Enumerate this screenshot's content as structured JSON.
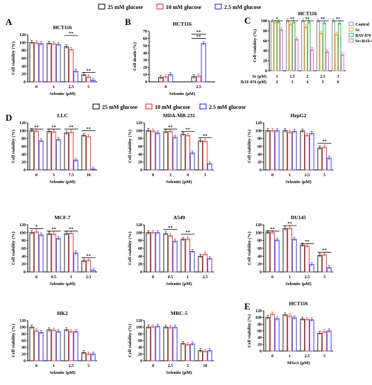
{
  "legend_top": [
    "25 mM glucose",
    "10 mM glucose",
    "2.5 mM glucose"
  ],
  "legend_mid": [
    "25 mM glucose",
    "10 mM glucose",
    "2.5 mM glucose"
  ],
  "colors": {
    "g25": "#222222",
    "g10": "#e8403a",
    "g2_5": "#3a3ae0",
    "ctrl": "#888888",
    "se": "#f0a030",
    "bay": "#2ab84a",
    "sebay": "#e060d0"
  },
  "chart_data": [
    {
      "id": "A",
      "letter": "A",
      "type": "bar",
      "title": "HCT116",
      "xlabel": "Selenite (μM)",
      "ylabel": "Cell viability (%)",
      "ylim": [
        0,
        120
      ],
      "yticks": [
        0,
        20,
        40,
        60,
        80,
        100,
        120
      ],
      "categories": [
        "0",
        "1",
        "2.5",
        "5"
      ],
      "series": [
        {
          "name": "25 mM glucose",
          "values": [
            100,
            98,
            89,
            18
          ]
        },
        {
          "name": "10 mM glucose",
          "values": [
            99,
            97,
            82,
            12
          ]
        },
        {
          "name": "2.5 mM glucose",
          "values": [
            97,
            95,
            27,
            4
          ]
        }
      ],
      "sig": [
        {
          "cat": 2,
          "text": "**",
          "level": 118
        },
        {
          "cat": 3,
          "text": "**",
          "level": 24
        }
      ]
    },
    {
      "id": "B",
      "letter": "B",
      "type": "bar",
      "title": "HCT116",
      "xlabel": "Selenite (μM)",
      "ylabel": "Cell death (%)",
      "ylim": [
        0,
        70
      ],
      "yticks": [
        0,
        10,
        20,
        30,
        40,
        50,
        60,
        70
      ],
      "categories": [
        "0",
        "2.5"
      ],
      "series": [
        {
          "name": "25 mM glucose",
          "values": [
            6,
            7
          ]
        },
        {
          "name": "10 mM glucose",
          "values": [
            7,
            8
          ]
        },
        {
          "name": "2.5 mM glucose",
          "values": [
            10,
            53
          ]
        }
      ],
      "sig": [
        {
          "cat": 1,
          "text": "**",
          "level": 66
        },
        {
          "cat": 1,
          "text": "**",
          "level": 60
        }
      ]
    },
    {
      "id": "C",
      "letter": "C",
      "type": "bar",
      "title": "HCT116",
      "xlabel": "",
      "ylabel": "Cell viability (%)",
      "ylim": [
        0,
        100
      ],
      "yticks": [
        0,
        20,
        40,
        60,
        80,
        100
      ],
      "categories": [
        "1|2",
        "1.5|3",
        "2|4",
        "2.5|5",
        "3|6"
      ],
      "row_labels": [
        "Se (μM)",
        "BAY-876 (μM)"
      ],
      "series": [
        {
          "name": "Control",
          "values": [
            100,
            100,
            100,
            100,
            100
          ]
        },
        {
          "name": "Se",
          "values": [
            97,
            93,
            88,
            75,
            73
          ]
        },
        {
          "name": "BAY-876",
          "values": [
            98,
            97,
            97,
            96,
            95
          ]
        },
        {
          "name": "Se+BAY-876",
          "values": [
            82,
            63,
            42,
            38,
            32
          ]
        }
      ],
      "sig": [
        {
          "cat": 0,
          "text": "*",
          "level": 104
        },
        {
          "cat": 1,
          "text": "**",
          "level": 104
        },
        {
          "cat": 2,
          "text": "**",
          "level": 104
        },
        {
          "cat": 3,
          "text": "**",
          "level": 104
        },
        {
          "cat": 4,
          "text": "**",
          "level": 104
        }
      ]
    },
    {
      "id": "D1",
      "letter": "D",
      "type": "bar",
      "title": "LLC",
      "xlabel": "Selenite (μM)",
      "ylabel": "Cell viability (%)",
      "ylim": [
        0,
        120
      ],
      "yticks": [
        0,
        20,
        40,
        60,
        80,
        100,
        120
      ],
      "categories": [
        "0",
        "5",
        "7.5",
        "10"
      ],
      "series": [
        {
          "name": "25 mM glucose",
          "values": [
            100,
            98,
            94,
            88
          ]
        },
        {
          "name": "10 mM glucose",
          "values": [
            99,
            97,
            96,
            85
          ]
        },
        {
          "name": "2.5 mM glucose",
          "values": [
            74,
            77,
            25,
            2
          ]
        }
      ],
      "sig": [
        {
          "cat": 0,
          "text": "**",
          "level": 104
        },
        {
          "cat": 1,
          "text": "**",
          "level": 104
        },
        {
          "cat": 2,
          "text": "**",
          "level": 104
        },
        {
          "cat": 3,
          "text": "**",
          "level": 100
        }
      ]
    },
    {
      "id": "D2",
      "letter": "",
      "type": "bar",
      "title": "MDA-MB-231",
      "xlabel": "Selenite (μM)",
      "ylabel": "Cell viability (%)",
      "ylim": [
        0,
        120
      ],
      "yticks": [
        0,
        20,
        40,
        60,
        80,
        100,
        120
      ],
      "categories": [
        "0",
        "3",
        "4",
        "5"
      ],
      "series": [
        {
          "name": "25 mM glucose",
          "values": [
            100,
            97,
            91,
            74
          ]
        },
        {
          "name": "10 mM glucose",
          "values": [
            99,
            98,
            88,
            73
          ]
        },
        {
          "name": "2.5 mM glucose",
          "values": [
            94,
            83,
            43,
            16
          ]
        }
      ],
      "sig": [
        {
          "cat": 1,
          "text": "**",
          "level": 104
        },
        {
          "cat": 2,
          "text": "**",
          "level": 98
        },
        {
          "cat": 3,
          "text": "**",
          "level": 82
        }
      ]
    },
    {
      "id": "D3",
      "letter": "",
      "type": "bar",
      "title": "HepG2",
      "xlabel": "Selenite (μM)",
      "ylabel": "Cell viability (%)",
      "ylim": [
        0,
        120
      ],
      "yticks": [
        0,
        20,
        40,
        60,
        80,
        100,
        120
      ],
      "categories": [
        "0",
        "1",
        "2.5",
        "5"
      ],
      "series": [
        {
          "name": "25 mM glucose",
          "values": [
            100,
            100,
            99,
            56
          ]
        },
        {
          "name": "10 mM glucose",
          "values": [
            100,
            96,
            88,
            58
          ]
        },
        {
          "name": "2.5 mM glucose",
          "values": [
            100,
            98,
            93,
            30
          ]
        }
      ],
      "sig": [
        {
          "cat": 3,
          "text": "**",
          "level": 68
        }
      ]
    },
    {
      "id": "D4",
      "letter": "",
      "type": "bar",
      "title": "MCF-7",
      "xlabel": "Selenite (μM)",
      "ylabel": "Cell viability (%)",
      "ylim": [
        0,
        120
      ],
      "yticks": [
        0,
        20,
        40,
        60,
        80,
        100,
        120
      ],
      "categories": [
        "0",
        "0.5",
        "1",
        "2.5"
      ],
      "series": [
        {
          "name": "25 mM glucose",
          "values": [
            100,
            97,
            97,
            28
          ]
        },
        {
          "name": "10 mM glucose",
          "values": [
            102,
            96,
            98,
            30
          ]
        },
        {
          "name": "2.5 mM glucose",
          "values": [
            94,
            85,
            48,
            4
          ]
        }
      ],
      "sig": [
        {
          "cat": 0,
          "text": "*",
          "level": 110
        },
        {
          "cat": 1,
          "text": "**",
          "level": 104
        },
        {
          "cat": 2,
          "text": "**",
          "level": 104
        },
        {
          "cat": 3,
          "text": "**",
          "level": 36
        }
      ]
    },
    {
      "id": "D5",
      "letter": "",
      "type": "bar",
      "title": "A549",
      "xlabel": "Selenite (μM)",
      "ylabel": "Cell viability (%)",
      "ylim": [
        0,
        120
      ],
      "yticks": [
        0,
        20,
        40,
        60,
        80,
        100,
        120
      ],
      "categories": [
        "0",
        "0.5",
        "1",
        "2.5"
      ],
      "series": [
        {
          "name": "25 mM glucose",
          "values": [
            100,
            97,
            83,
            40
          ]
        },
        {
          "name": "10 mM glucose",
          "values": [
            100,
            92,
            84,
            45
          ]
        },
        {
          "name": "2.5 mM glucose",
          "values": [
            100,
            78,
            52,
            34
          ]
        }
      ],
      "sig": [
        {
          "cat": 1,
          "text": "**",
          "level": 108
        },
        {
          "cat": 2,
          "text": "**",
          "level": 96
        }
      ]
    },
    {
      "id": "D6",
      "letter": "",
      "type": "bar",
      "title": "DU145",
      "xlabel": "Selenite (μM)",
      "ylabel": "Cell viability (%)",
      "ylim": [
        0,
        120
      ],
      "yticks": [
        0,
        20,
        40,
        60,
        80,
        100,
        120
      ],
      "categories": [
        "0",
        "1",
        "2.5",
        "5"
      ],
      "series": [
        {
          "name": "25 mM glucose",
          "values": [
            100,
            110,
            68,
            42
          ]
        },
        {
          "name": "10 mM glucose",
          "values": [
            100,
            111,
            66,
            44
          ]
        },
        {
          "name": "2.5 mM glucose",
          "values": [
            81,
            83,
            19,
            11
          ]
        }
      ],
      "sig": [
        {
          "cat": 0,
          "text": "**",
          "level": 104
        },
        {
          "cat": 1,
          "text": "**",
          "level": 118
        },
        {
          "cat": 2,
          "text": "**",
          "level": 72
        },
        {
          "cat": 3,
          "text": "**",
          "level": 50
        }
      ]
    },
    {
      "id": "D7",
      "letter": "",
      "type": "bar",
      "title": "HK2",
      "xlabel": "Selenite (μM)",
      "ylabel": "Cell viability (%)",
      "ylim": [
        0,
        120
      ],
      "yticks": [
        0,
        20,
        40,
        60,
        80,
        100,
        120
      ],
      "categories": [
        "0",
        "1",
        "2.5",
        "5"
      ],
      "series": [
        {
          "name": "25 mM glucose",
          "values": [
            100,
            92,
            92,
            24
          ]
        },
        {
          "name": "10 mM glucose",
          "values": [
            89,
            91,
            87,
            20
          ]
        },
        {
          "name": "2.5 mM glucose",
          "values": [
            84,
            87,
            87,
            20
          ]
        }
      ],
      "sig": []
    },
    {
      "id": "D8",
      "letter": "",
      "type": "bar",
      "title": "MRC-5",
      "xlabel": "Selenite (μM)",
      "ylabel": "Cell viability (%)",
      "ylim": [
        0,
        120
      ],
      "yticks": [
        0,
        20,
        40,
        60,
        80,
        100,
        120
      ],
      "categories": [
        "0",
        "2.5",
        "5",
        "10"
      ],
      "series": [
        {
          "name": "25 mM glucose",
          "values": [
            100,
            100,
            51,
            30
          ]
        },
        {
          "name": "10 mM glucose",
          "values": [
            101,
            99,
            48,
            28
          ]
        },
        {
          "name": "2.5 mM glucose",
          "values": [
            103,
            100,
            50,
            30
          ]
        }
      ],
      "sig": []
    },
    {
      "id": "E",
      "letter": "E",
      "type": "bar",
      "title": "HCT116",
      "xlabel": "MSeA (μM)",
      "ylabel": "Cell viability (%)",
      "ylim": [
        0,
        120
      ],
      "yticks": [
        0,
        20,
        40,
        60,
        80,
        100,
        120
      ],
      "categories": [
        "0",
        "1",
        "2.5",
        "5"
      ],
      "series": [
        {
          "name": "25 mM glucose",
          "values": [
            100,
            108,
            95,
            53
          ]
        },
        {
          "name": "10 mM glucose",
          "values": [
            110,
            104,
            94,
            57
          ]
        },
        {
          "name": "2.5 mM glucose",
          "values": [
            96,
            99,
            93,
            60
          ]
        }
      ],
      "sig": []
    }
  ]
}
